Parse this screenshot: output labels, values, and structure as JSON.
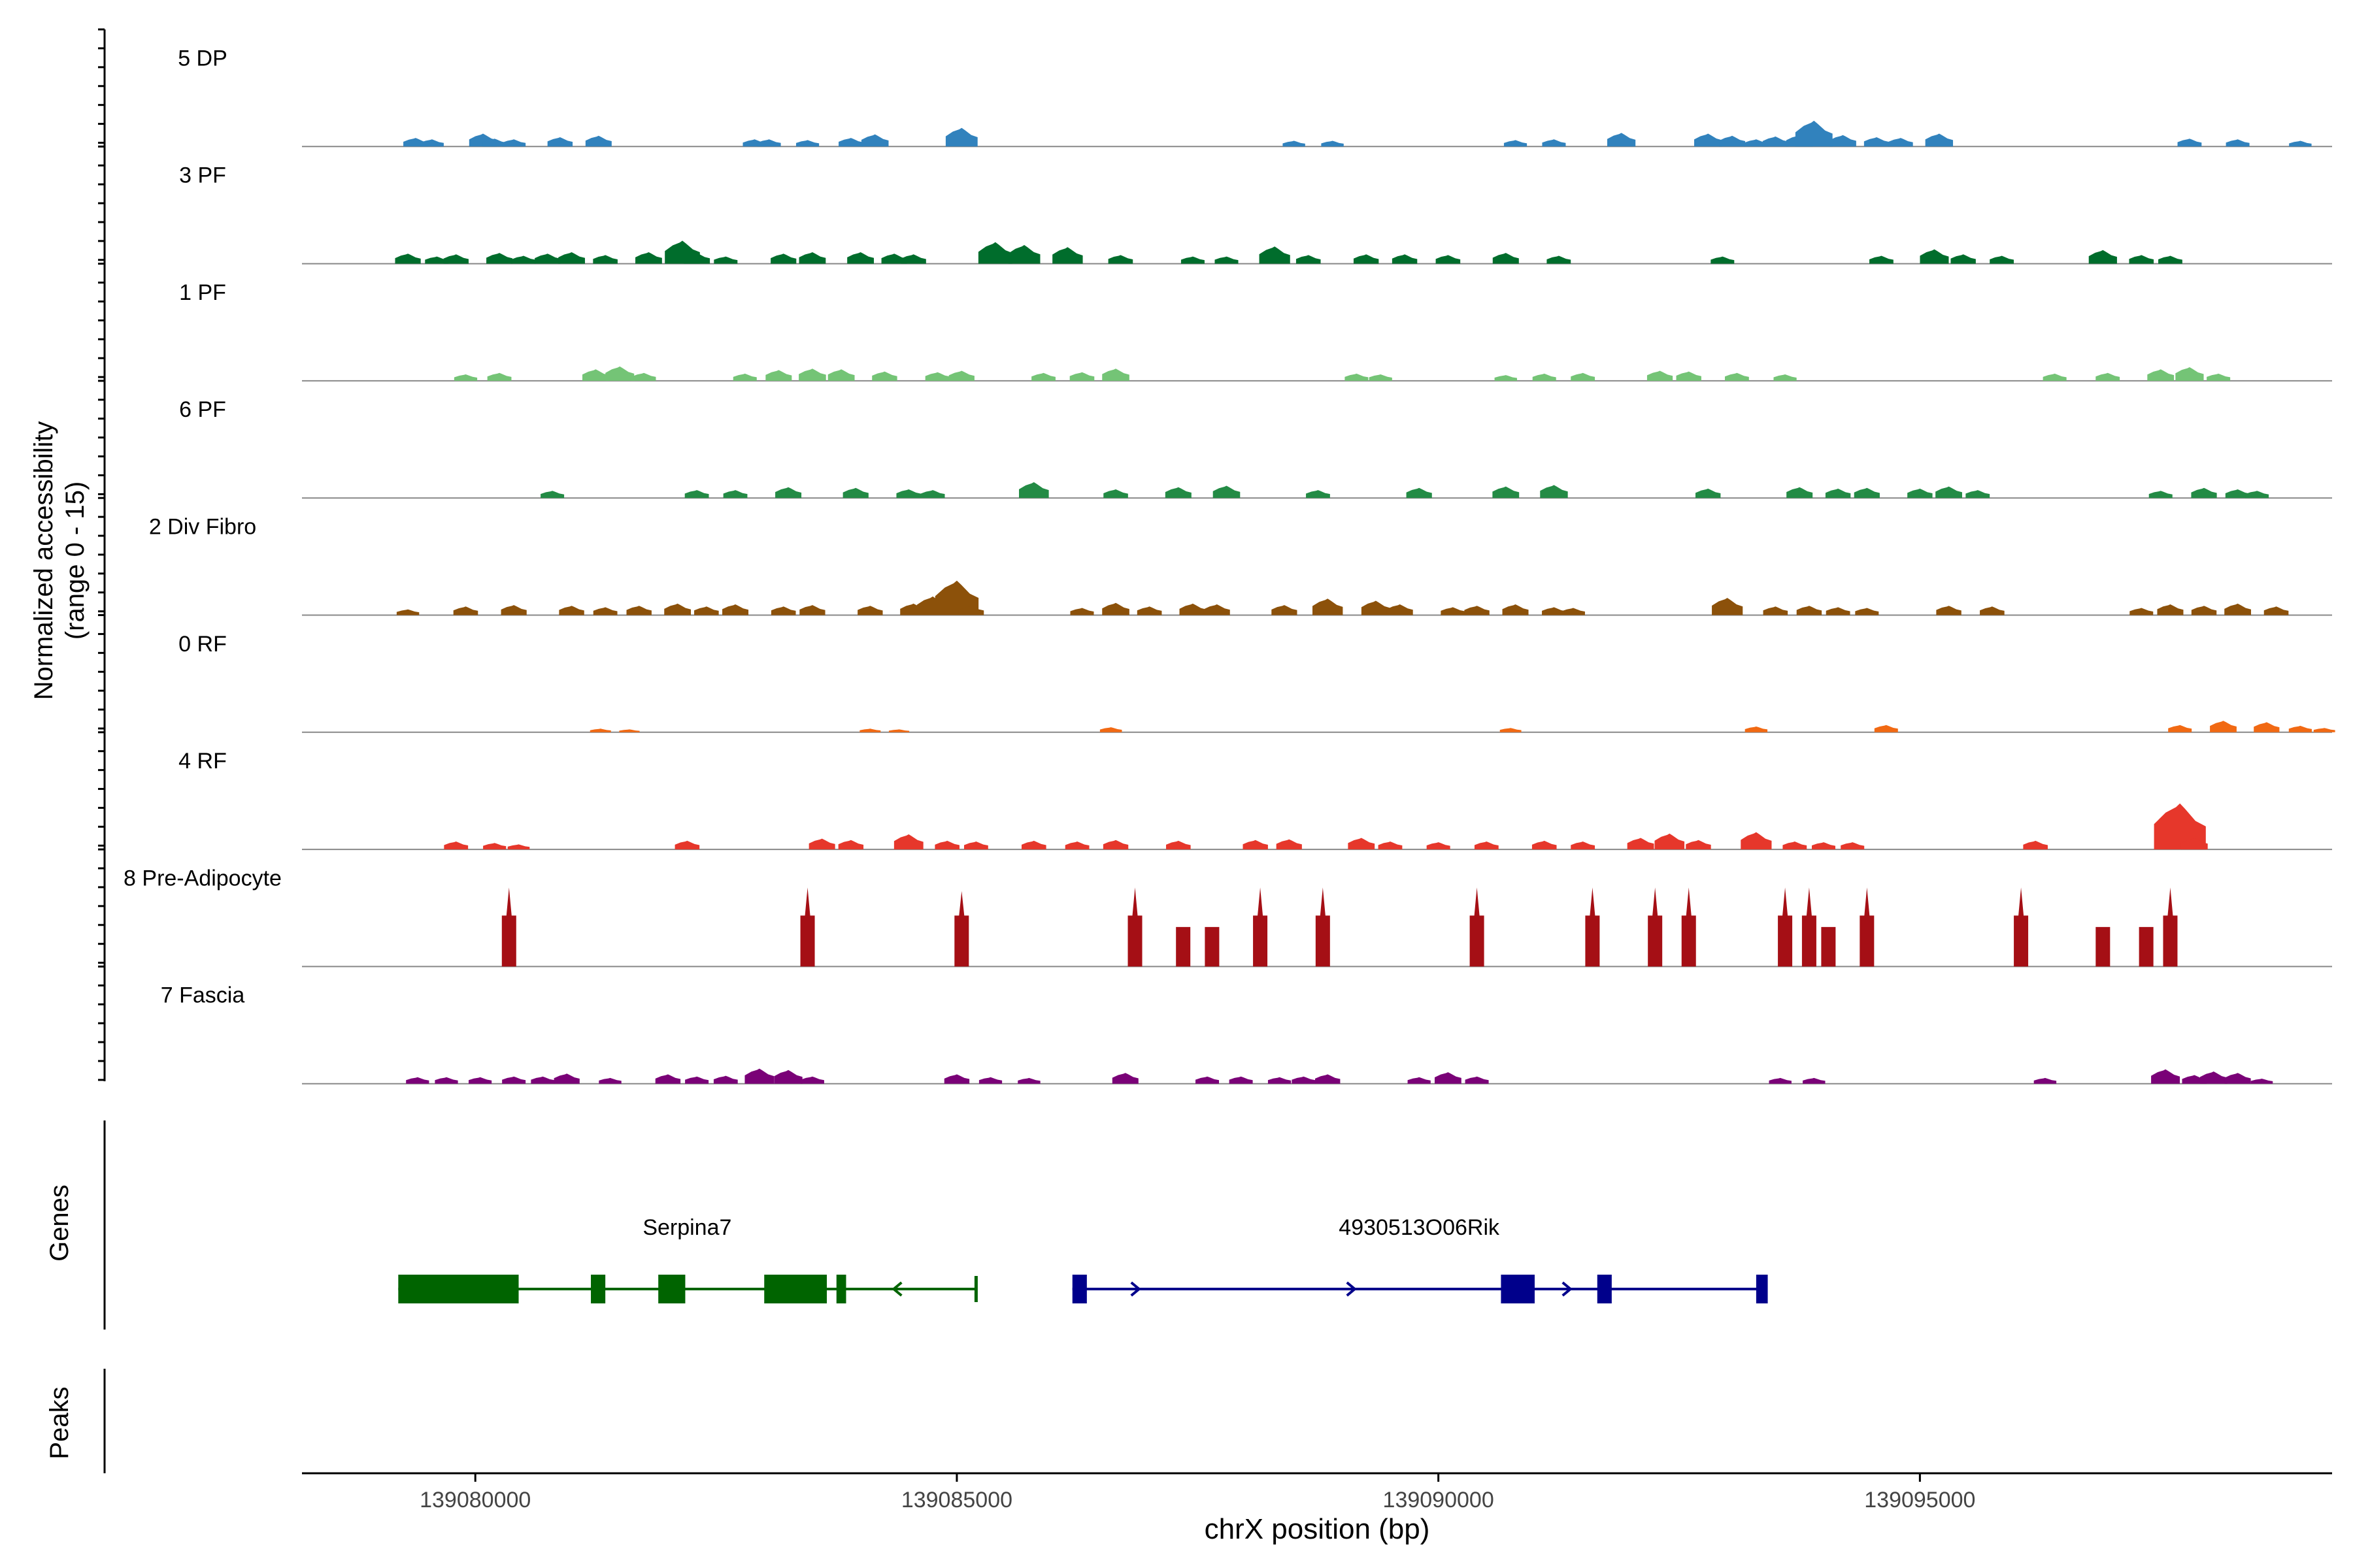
{
  "chart_data": {
    "type": "area",
    "title": "",
    "xlabel": "chrX position (bp)",
    "ylabel_line1": "Normalized accessibility",
    "ylabel_line2": "(range 0 - 15)",
    "xlim": [
      139078200,
      139099280
    ],
    "ylim": [
      0,
      15
    ],
    "x_ticks": [
      139080000,
      139085000,
      139090000,
      139095000
    ],
    "x_tick_labels": [
      "139080000",
      "139085000",
      "139090000",
      "139095000"
    ],
    "tracks": [
      {
        "name": "5 DP",
        "color": "#3182BD",
        "peaks": [
          [
            139079380,
            1.2
          ],
          [
            139079550,
            1.0
          ],
          [
            139080080,
            1.8
          ],
          [
            139080200,
            1.1
          ],
          [
            139080400,
            1.0
          ],
          [
            139080880,
            1.3
          ],
          [
            139081280,
            1.5
          ],
          [
            139082900,
            1.0
          ],
          [
            139083050,
            1.0
          ],
          [
            139083450,
            0.9
          ],
          [
            139083900,
            1.2
          ],
          [
            139084150,
            1.7
          ],
          [
            139085050,
            2.6
          ],
          [
            139088500,
            0.8
          ],
          [
            139088900,
            0.8
          ],
          [
            139090800,
            0.9
          ],
          [
            139091200,
            1.0
          ],
          [
            139091900,
            1.9
          ],
          [
            139092800,
            1.8
          ],
          [
            139093050,
            1.5
          ],
          [
            139093300,
            1.0
          ],
          [
            139093500,
            1.4
          ],
          [
            139093750,
            1.6
          ],
          [
            139093900,
            3.6
          ],
          [
            139094200,
            1.6
          ],
          [
            139094550,
            1.3
          ],
          [
            139094800,
            1.2
          ],
          [
            139095200,
            1.8
          ],
          [
            139097800,
            1.1
          ],
          [
            139098300,
            1.0
          ],
          [
            139098950,
            0.8
          ]
        ]
      },
      {
        "name": "3 PF",
        "color": "#006D2C",
        "peaks": [
          [
            139079300,
            1.4
          ],
          [
            139079600,
            1.0
          ],
          [
            139079800,
            1.3
          ],
          [
            139080250,
            1.5
          ],
          [
            139080500,
            1.1
          ],
          [
            139080750,
            1.4
          ],
          [
            139081000,
            1.6
          ],
          [
            139081350,
            1.2
          ],
          [
            139081800,
            1.6
          ],
          [
            139082150,
            3.2
          ],
          [
            139082300,
            1.5
          ],
          [
            139082600,
            1.0
          ],
          [
            139083200,
            1.4
          ],
          [
            139083500,
            1.6
          ],
          [
            139084000,
            1.6
          ],
          [
            139084350,
            1.4
          ],
          [
            139084550,
            1.3
          ],
          [
            139085400,
            3.0
          ],
          [
            139085700,
            2.6
          ],
          [
            139086150,
            2.3
          ],
          [
            139086700,
            1.2
          ],
          [
            139087450,
            1.0
          ],
          [
            139087800,
            1.0
          ],
          [
            139088300,
            2.4
          ],
          [
            139088650,
            1.2
          ],
          [
            139089250,
            1.3
          ],
          [
            139089650,
            1.3
          ],
          [
            139090100,
            1.2
          ],
          [
            139090700,
            1.5
          ],
          [
            139091250,
            1.1
          ],
          [
            139092950,
            1.0
          ],
          [
            139094600,
            1.1
          ],
          [
            139095150,
            2.0
          ],
          [
            139095450,
            1.3
          ],
          [
            139095850,
            1.1
          ],
          [
            139096900,
            1.9
          ],
          [
            139097300,
            1.2
          ],
          [
            139097600,
            1.1
          ]
        ]
      },
      {
        "name": "1 PF",
        "color": "#74C476",
        "peaks": [
          [
            139079900,
            0.9
          ],
          [
            139080250,
            1.1
          ],
          [
            139081250,
            1.6
          ],
          [
            139081500,
            2.0
          ],
          [
            139081750,
            1.1
          ],
          [
            139082800,
            1.0
          ],
          [
            139083150,
            1.5
          ],
          [
            139083500,
            1.7
          ],
          [
            139083800,
            1.6
          ],
          [
            139084250,
            1.3
          ],
          [
            139084800,
            1.2
          ],
          [
            139085050,
            1.4
          ],
          [
            139085900,
            1.1
          ],
          [
            139086300,
            1.2
          ],
          [
            139086650,
            1.7
          ],
          [
            139089150,
            1.0
          ],
          [
            139089400,
            0.9
          ],
          [
            139090700,
            0.8
          ],
          [
            139091100,
            1.0
          ],
          [
            139091500,
            1.1
          ],
          [
            139092300,
            1.4
          ],
          [
            139092600,
            1.3
          ],
          [
            139093100,
            1.1
          ],
          [
            139093600,
            0.9
          ],
          [
            139096400,
            1.0
          ],
          [
            139096950,
            1.1
          ],
          [
            139097500,
            1.6
          ],
          [
            139097800,
            1.9
          ],
          [
            139098100,
            1.0
          ]
        ]
      },
      {
        "name": "6 PF",
        "color": "#238B45",
        "peaks": [
          [
            139080800,
            1.0
          ],
          [
            139082300,
            1.1
          ],
          [
            139082700,
            1.1
          ],
          [
            139083250,
            1.5
          ],
          [
            139083950,
            1.4
          ],
          [
            139084500,
            1.2
          ],
          [
            139084750,
            1.1
          ],
          [
            139085800,
            2.2
          ],
          [
            139086650,
            1.2
          ],
          [
            139087300,
            1.5
          ],
          [
            139087800,
            1.7
          ],
          [
            139088750,
            1.1
          ],
          [
            139089800,
            1.4
          ],
          [
            139090700,
            1.6
          ],
          [
            139091200,
            1.8
          ],
          [
            139092800,
            1.3
          ],
          [
            139093750,
            1.5
          ],
          [
            139094150,
            1.3
          ],
          [
            139094450,
            1.4
          ],
          [
            139095000,
            1.3
          ],
          [
            139095300,
            1.6
          ],
          [
            139095600,
            1.1
          ],
          [
            139097500,
            1.0
          ],
          [
            139097950,
            1.4
          ],
          [
            139098300,
            1.2
          ],
          [
            139098500,
            1.0
          ]
        ]
      },
      {
        "name": "2 Div Fibro",
        "color": "#8C510A",
        "peaks": [
          [
            139079300,
            0.8
          ],
          [
            139079900,
            1.2
          ],
          [
            139080400,
            1.4
          ],
          [
            139081000,
            1.3
          ],
          [
            139081350,
            1.1
          ],
          [
            139081700,
            1.3
          ],
          [
            139082100,
            1.6
          ],
          [
            139082400,
            1.2
          ],
          [
            139082700,
            1.5
          ],
          [
            139083200,
            1.2
          ],
          [
            139083500,
            1.4
          ],
          [
            139084100,
            1.3
          ],
          [
            139084550,
            1.6
          ],
          [
            139084750,
            2.6
          ],
          [
            139085000,
            4.8
          ],
          [
            139085150,
            1.3
          ],
          [
            139086300,
            1.0
          ],
          [
            139086650,
            1.7
          ],
          [
            139087000,
            1.2
          ],
          [
            139087450,
            1.6
          ],
          [
            139087700,
            1.5
          ],
          [
            139088400,
            1.4
          ],
          [
            139088850,
            2.3
          ],
          [
            139089350,
            2.0
          ],
          [
            139089600,
            1.5
          ],
          [
            139090150,
            1.1
          ],
          [
            139090400,
            1.3
          ],
          [
            139090800,
            1.5
          ],
          [
            139091200,
            1.1
          ],
          [
            139091400,
            1.0
          ],
          [
            139093000,
            2.4
          ],
          [
            139093500,
            1.2
          ],
          [
            139093850,
            1.3
          ],
          [
            139094150,
            1.1
          ],
          [
            139094450,
            1.0
          ],
          [
            139095300,
            1.3
          ],
          [
            139095750,
            1.2
          ],
          [
            139097300,
            1.0
          ],
          [
            139097600,
            1.5
          ],
          [
            139097950,
            1.3
          ],
          [
            139098300,
            1.6
          ],
          [
            139098700,
            1.2
          ]
        ]
      },
      {
        "name": "0 RF",
        "color": "#F16913",
        "peaks": [
          [
            139081300,
            0.5
          ],
          [
            139081600,
            0.4
          ],
          [
            139084100,
            0.5
          ],
          [
            139084400,
            0.4
          ],
          [
            139086600,
            0.7
          ],
          [
            139090750,
            0.6
          ],
          [
            139093300,
            0.8
          ],
          [
            139094650,
            1.0
          ],
          [
            139097700,
            1.0
          ],
          [
            139098150,
            1.6
          ],
          [
            139098600,
            1.4
          ],
          [
            139098950,
            0.9
          ],
          [
            139099200,
            0.6
          ]
        ]
      },
      {
        "name": "4 RF",
        "color": "#E6372B",
        "peaks": [
          [
            139079800,
            1.1
          ],
          [
            139080200,
            0.9
          ],
          [
            139080450,
            0.7
          ],
          [
            139082200,
            1.2
          ],
          [
            139083600,
            1.5
          ],
          [
            139083900,
            1.3
          ],
          [
            139084500,
            2.1
          ],
          [
            139084900,
            1.2
          ],
          [
            139085200,
            1.1
          ],
          [
            139085800,
            1.2
          ],
          [
            139086250,
            1.1
          ],
          [
            139086650,
            1.3
          ],
          [
            139087300,
            1.2
          ],
          [
            139088100,
            1.3
          ],
          [
            139088450,
            1.4
          ],
          [
            139089200,
            1.6
          ],
          [
            139089500,
            1.1
          ],
          [
            139090000,
            1.0
          ],
          [
            139090500,
            1.1
          ],
          [
            139091100,
            1.2
          ],
          [
            139091500,
            1.1
          ],
          [
            139092100,
            1.6
          ],
          [
            139092400,
            2.2
          ],
          [
            139092700,
            1.3
          ],
          [
            139093300,
            2.4
          ],
          [
            139093700,
            1.1
          ],
          [
            139094000,
            1.0
          ],
          [
            139094300,
            1.0
          ],
          [
            139096200,
            1.2
          ],
          [
            139097700,
            6.4
          ],
          [
            139097850,
            1.6
          ]
        ]
      },
      {
        "name": "8 Pre-Adipocyte",
        "color": "#A50F15",
        "peaks": [
          [
            139080350,
            11.0
          ],
          [
            139083450,
            11.0
          ],
          [
            139085050,
            10.5
          ],
          [
            139086850,
            11.0
          ],
          [
            139087350,
            5.5
          ],
          [
            139087650,
            5.5
          ],
          [
            139088150,
            11.0
          ],
          [
            139088800,
            11.0
          ],
          [
            139090400,
            11.0
          ],
          [
            139091600,
            11.0
          ],
          [
            139092250,
            11.0
          ],
          [
            139092600,
            11.0
          ],
          [
            139093600,
            11.0
          ],
          [
            139093850,
            11.0
          ],
          [
            139094050,
            5.5
          ],
          [
            139094450,
            11.0
          ],
          [
            139096050,
            11.0
          ],
          [
            139096900,
            5.5
          ],
          [
            139097350,
            5.5
          ],
          [
            139097600,
            11.0
          ]
        ]
      },
      {
        "name": "7 Fascia",
        "color": "#7A0177",
        "peaks": [
          [
            139079400,
            0.9
          ],
          [
            139079700,
            0.9
          ],
          [
            139080050,
            0.9
          ],
          [
            139080400,
            1.0
          ],
          [
            139080700,
            1.0
          ],
          [
            139080950,
            1.4
          ],
          [
            139081400,
            0.8
          ],
          [
            139082000,
            1.3
          ],
          [
            139082300,
            1.0
          ],
          [
            139082600,
            1.1
          ],
          [
            139082950,
            2.1
          ],
          [
            139083250,
            1.9
          ],
          [
            139083500,
            1.0
          ],
          [
            139085000,
            1.3
          ],
          [
            139085350,
            0.9
          ],
          [
            139085750,
            0.8
          ],
          [
            139086750,
            1.5
          ],
          [
            139087600,
            1.0
          ],
          [
            139087950,
            1.0
          ],
          [
            139088350,
            0.9
          ],
          [
            139088600,
            1.0
          ],
          [
            139088850,
            1.3
          ],
          [
            139089800,
            0.9
          ],
          [
            139090100,
            1.6
          ],
          [
            139090400,
            1.0
          ],
          [
            139093550,
            0.8
          ],
          [
            139093900,
            0.8
          ],
          [
            139096300,
            0.8
          ],
          [
            139097550,
            2.0
          ],
          [
            139097850,
            1.2
          ],
          [
            139098050,
            1.7
          ],
          [
            139098300,
            1.5
          ],
          [
            139098550,
            0.7
          ]
        ]
      }
    ],
    "genes": [
      {
        "name": "Serpina7",
        "color": "#006400",
        "strand": "-",
        "start": 139079200,
        "end": 139085200,
        "exons": [
          [
            139079200,
            139080450
          ],
          [
            139081200,
            139081350
          ],
          [
            139081900,
            139082180
          ],
          [
            139083000,
            139083650
          ],
          [
            139083750,
            139083850
          ]
        ]
      },
      {
        "name": "4930513O06Rik",
        "color": "#00008B",
        "strand": "+",
        "start": 139086200,
        "end": 139093400,
        "exons": [
          [
            139086200,
            139086350
          ],
          [
            139090650,
            139091000
          ],
          [
            139091650,
            139091800
          ],
          [
            139093300,
            139093420
          ]
        ]
      }
    ],
    "panel_labels": {
      "genes": "Genes",
      "peaks": "Peaks"
    }
  }
}
